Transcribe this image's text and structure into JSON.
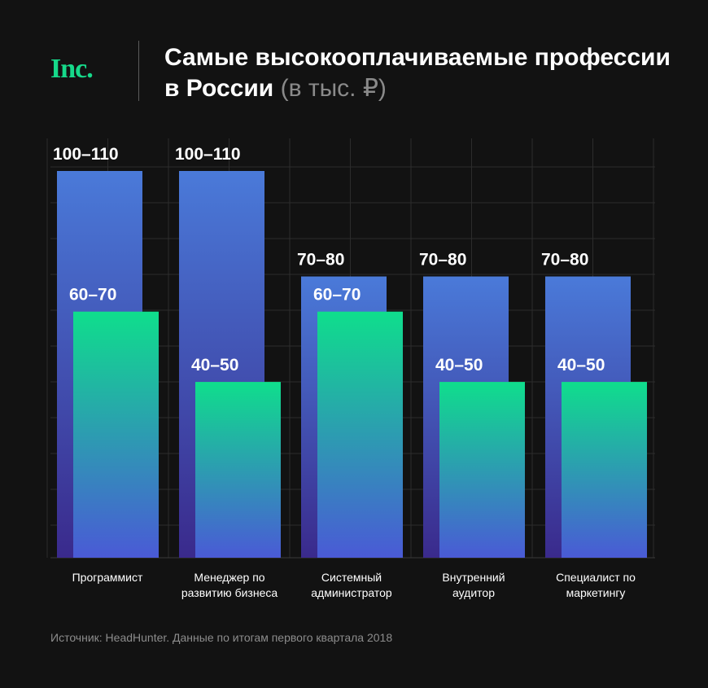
{
  "header": {
    "logo": "Inc.",
    "title": "Самые высокооплачиваемые профессии в России",
    "unit": "(в тыс. ₽)"
  },
  "chart_data": {
    "type": "bar",
    "categories": [
      [
        "Программист"
      ],
      [
        "Менеджер по",
        "развитию бизнеса"
      ],
      [
        "Системный",
        "администратор"
      ],
      [
        "Внутренний",
        "аудитор"
      ],
      [
        "Специалист по",
        "маркетингу"
      ]
    ],
    "series": [
      {
        "color_top": "#4a7ad9",
        "color_bottom": "#3a2a8c",
        "values": [
          [
            100,
            110
          ],
          [
            100,
            110
          ],
          [
            70,
            80
          ],
          [
            70,
            80
          ],
          [
            70,
            80
          ]
        ],
        "labels": [
          "100–110",
          "100–110",
          "70–80",
          "70–80",
          "70–80"
        ]
      },
      {
        "color_top": "#0fde8c",
        "color_bottom": "#4a5ad6",
        "values": [
          [
            60,
            70
          ],
          [
            40,
            50
          ],
          [
            60,
            70
          ],
          [
            40,
            50
          ],
          [
            40,
            50
          ]
        ],
        "labels": [
          "60–70",
          "40–50",
          "60–70",
          "40–50",
          "40–50"
        ]
      }
    ],
    "ylim": [
      0,
      110
    ],
    "grid": true
  },
  "footer": {
    "source": "Источник: HeadHunter. Данные по итогам первого квартала 2018"
  }
}
